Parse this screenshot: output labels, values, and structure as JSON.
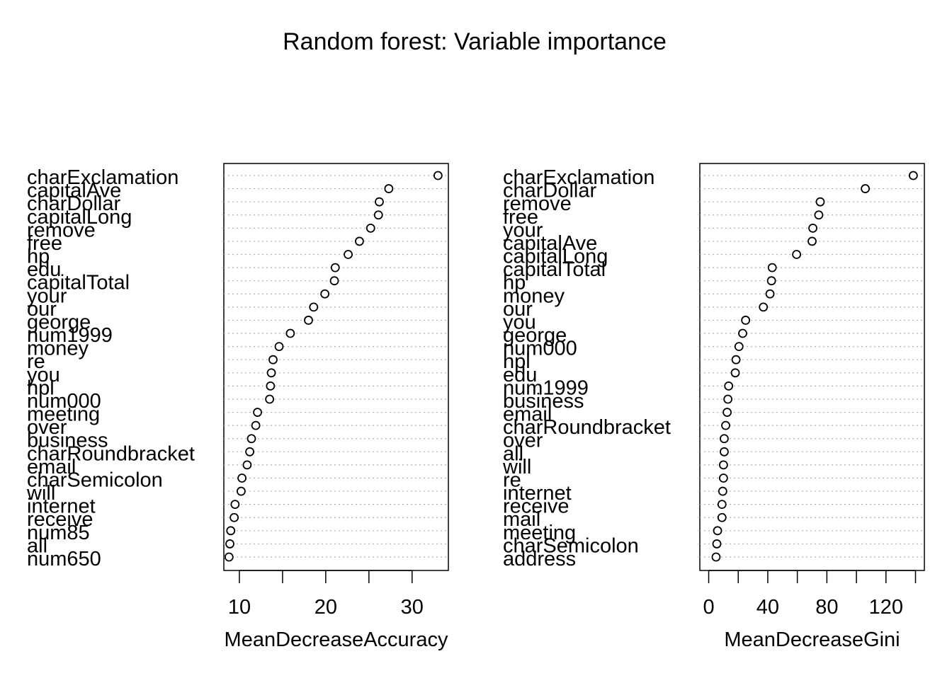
{
  "page": {
    "title": "Random forest: Variable importance"
  },
  "chart_data": [
    {
      "type": "dotchart",
      "xlabel": "MeanDecreaseAccuracy",
      "xlim": [
        8.2,
        34.2
      ],
      "ticks": [
        10,
        15,
        20,
        25,
        30
      ],
      "tick_labels": [
        "10",
        "",
        "20",
        "",
        "30"
      ],
      "grid": true,
      "categories": [
        "charExclamation",
        "capitalAve",
        "charDollar",
        "capitalLong",
        "remove",
        "free",
        "hp",
        "edu",
        "capitalTotal",
        "your",
        "our",
        "george",
        "num1999",
        "money",
        "re",
        "you",
        "hpl",
        "num000",
        "meeting",
        "over",
        "business",
        "charRoundbracket",
        "email",
        "charSemicolon",
        "will",
        "internet",
        "receive",
        "num85",
        "all",
        "num650"
      ],
      "values": [
        33.0,
        27.3,
        26.2,
        26.1,
        25.2,
        23.9,
        22.6,
        21.1,
        21.0,
        19.9,
        18.6,
        18.0,
        15.9,
        14.6,
        13.9,
        13.7,
        13.6,
        13.5,
        12.1,
        11.9,
        11.4,
        11.2,
        10.9,
        10.3,
        10.2,
        9.5,
        9.4,
        9.0,
        8.9,
        8.8
      ]
    },
    {
      "type": "dotchart",
      "xlabel": "MeanDecreaseGini",
      "xlim": [
        -6,
        146
      ],
      "ticks": [
        0,
        20,
        40,
        60,
        80,
        100,
        120,
        140
      ],
      "tick_labels": [
        "0",
        "",
        "40",
        "",
        "80",
        "",
        "120",
        ""
      ],
      "grid": true,
      "categories": [
        "charExclamation",
        "charDollar",
        "remove",
        "free",
        "your",
        "capitalAve",
        "capitalLong",
        "capitalTotal",
        "hp",
        "money",
        "our",
        "you",
        "george",
        "num000",
        "hpl",
        "edu",
        "num1999",
        "business",
        "email",
        "charRoundbracket",
        "over",
        "all",
        "will",
        "re",
        "internet",
        "receive",
        "mail",
        "meeting",
        "charSemicolon",
        "address"
      ],
      "values": [
        138.5,
        106.0,
        75.5,
        74.5,
        70.5,
        70.0,
        59.5,
        43.0,
        42.5,
        41.5,
        37.0,
        25.0,
        23.0,
        20.5,
        18.5,
        18.0,
        13.5,
        13.0,
        12.5,
        11.5,
        10.5,
        10.5,
        10.0,
        10.0,
        9.5,
        9.0,
        9.0,
        6.0,
        5.5,
        5.0
      ]
    }
  ]
}
